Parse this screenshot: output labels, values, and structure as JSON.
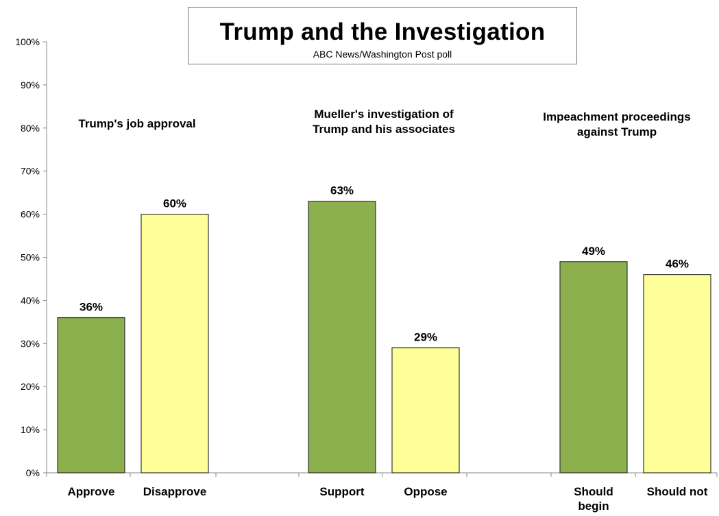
{
  "chart_data": {
    "type": "bar",
    "title": "Trump and the Investigation",
    "subtitle": "ABC News/Washington  Post poll",
    "ylim": [
      0,
      100
    ],
    "yticks": [
      "0%",
      "10%",
      "20%",
      "30%",
      "40%",
      "50%",
      "60%",
      "70%",
      "80%",
      "90%",
      "100%"
    ],
    "grid": false,
    "colors": {
      "favorable": "#8db04e",
      "unfavorable": "#ffff99",
      "outline": "#333333"
    },
    "groups": [
      {
        "label": "Trump's job approval",
        "bars": [
          {
            "category": "Approve",
            "value": 36,
            "data_label": "36%",
            "tone": "favorable"
          },
          {
            "category": "Disapprove",
            "value": 60,
            "data_label": "60%",
            "tone": "unfavorable"
          }
        ]
      },
      {
        "label": "Mueller's investigation of\nTrump and his associates",
        "bars": [
          {
            "category": "Support",
            "value": 63,
            "data_label": "63%",
            "tone": "favorable"
          },
          {
            "category": "Oppose",
            "value": 29,
            "data_label": "29%",
            "tone": "unfavorable"
          }
        ]
      },
      {
        "label": "Impeachment proceedings\nagainst Trump",
        "bars": [
          {
            "category": "Should\nbegin",
            "value": 49,
            "data_label": "49%",
            "tone": "favorable"
          },
          {
            "category": "Should not",
            "value": 46,
            "data_label": "46%",
            "tone": "unfavorable"
          }
        ]
      }
    ]
  }
}
